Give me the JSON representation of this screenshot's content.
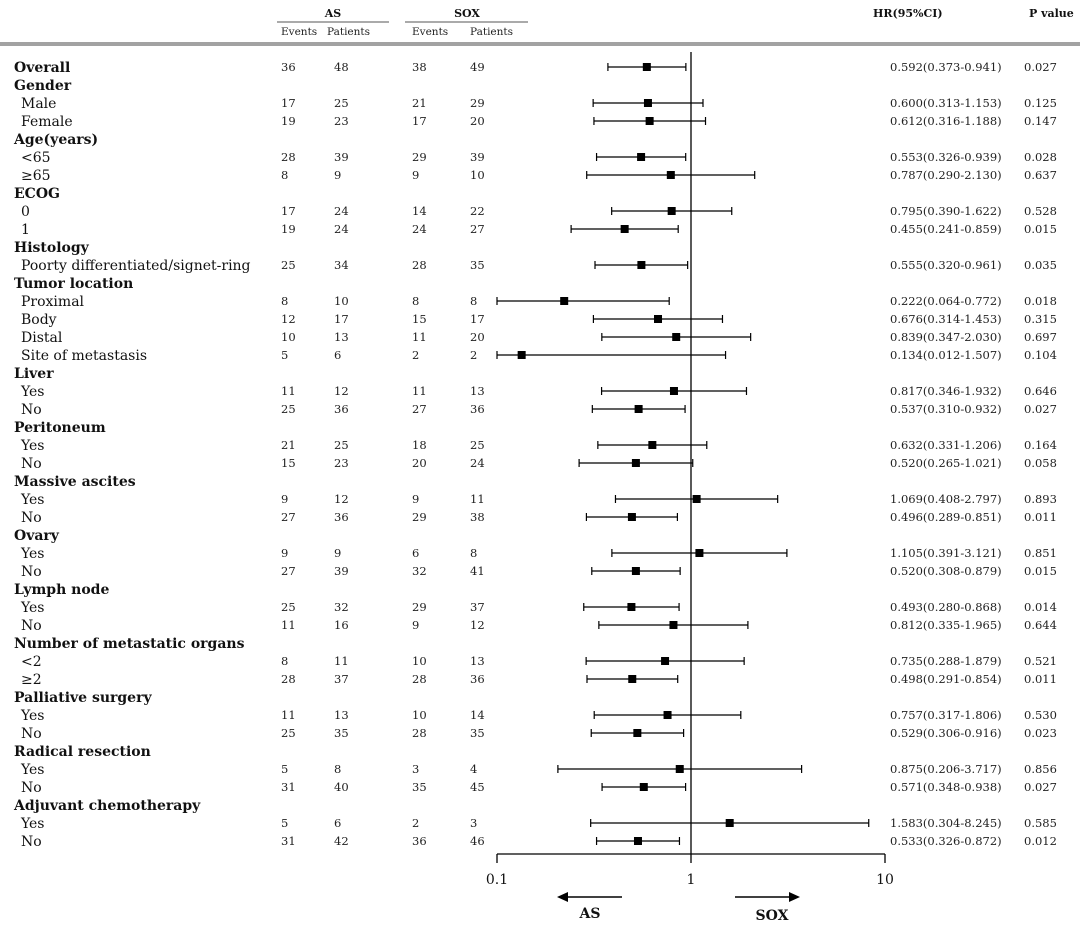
{
  "header": {
    "group_a": "AS",
    "group_b": "SOX",
    "events_label": "Events",
    "patients_label": "Patients",
    "hr_label": "HR(95%CI)",
    "p_label": "P value"
  },
  "chart_data": {
    "type": "forest",
    "x_scale": "log",
    "xlim": [
      0.1,
      10
    ],
    "reference_line": 1,
    "x_ticks": [
      "0.1",
      "1",
      "10"
    ],
    "direction_left": "AS",
    "direction_right": "SOX",
    "colors": {
      "marker": "#000000",
      "line": "#000000"
    },
    "rows": [
      {
        "label": "Overall",
        "type": "header",
        "as_events": "36",
        "as_patients": "48",
        "sox_events": "38",
        "sox_patients": "49",
        "hr": 0.592,
        "lo": 0.373,
        "hi": 0.941,
        "hr_text": "0.592(0.373-0.941)",
        "p": "0.027"
      },
      {
        "label": "Gender",
        "type": "header"
      },
      {
        "label": "Male",
        "type": "item",
        "as_events": "17",
        "as_patients": "25",
        "sox_events": "21",
        "sox_patients": "29",
        "hr": 0.6,
        "lo": 0.313,
        "hi": 1.153,
        "hr_text": "0.600(0.313-1.153)",
        "p": "0.125"
      },
      {
        "label": "Female",
        "type": "item",
        "as_events": "19",
        "as_patients": "23",
        "sox_events": "17",
        "sox_patients": "20",
        "hr": 0.612,
        "lo": 0.316,
        "hi": 1.188,
        "hr_text": "0.612(0.316-1.188)",
        "p": "0.147"
      },
      {
        "label": "Age(years)",
        "type": "header"
      },
      {
        "label": "<65",
        "type": "item",
        "as_events": "28",
        "as_patients": "39",
        "sox_events": "29",
        "sox_patients": "39",
        "hr": 0.553,
        "lo": 0.326,
        "hi": 0.939,
        "hr_text": "0.553(0.326-0.939)",
        "p": "0.028"
      },
      {
        "label": "≥65",
        "type": "item",
        "as_events": "8",
        "as_patients": "9",
        "sox_events": "9",
        "sox_patients": "10",
        "hr": 0.787,
        "lo": 0.29,
        "hi": 2.13,
        "hr_text": "0.787(0.290-2.130)",
        "p": "0.637"
      },
      {
        "label": "ECOG",
        "type": "header"
      },
      {
        "label": "0",
        "type": "item",
        "as_events": "17",
        "as_patients": "24",
        "sox_events": "14",
        "sox_patients": "22",
        "hr": 0.795,
        "lo": 0.39,
        "hi": 1.622,
        "hr_text": "0.795(0.390-1.622)",
        "p": "0.528"
      },
      {
        "label": "1",
        "type": "item",
        "as_events": "19",
        "as_patients": "24",
        "sox_events": "24",
        "sox_patients": "27",
        "hr": 0.455,
        "lo": 0.241,
        "hi": 0.859,
        "hr_text": "0.455(0.241-0.859)",
        "p": "0.015"
      },
      {
        "label": "Histology",
        "type": "header"
      },
      {
        "label": "Poorty differentiated/signet-ring",
        "type": "item",
        "as_events": "25",
        "as_patients": "34",
        "sox_events": "28",
        "sox_patients": "35",
        "hr": 0.555,
        "lo": 0.32,
        "hi": 0.961,
        "hr_text": "0.555(0.320-0.961)",
        "p": "0.035"
      },
      {
        "label": "Tumor location",
        "type": "header"
      },
      {
        "label": "Proximal",
        "type": "item",
        "as_events": "8",
        "as_patients": "10",
        "sox_events": "8",
        "sox_patients": "8",
        "hr": 0.222,
        "lo": 0.064,
        "hi": 0.772,
        "hr_text": "0.222(0.064-0.772)",
        "p": "0.018"
      },
      {
        "label": "Body",
        "type": "item",
        "as_events": "12",
        "as_patients": "17",
        "sox_events": "15",
        "sox_patients": "17",
        "hr": 0.676,
        "lo": 0.314,
        "hi": 1.453,
        "hr_text": "0.676(0.314-1.453)",
        "p": "0.315"
      },
      {
        "label": "Distal",
        "type": "item",
        "as_events": "10",
        "as_patients": "13",
        "sox_events": "11",
        "sox_patients": "20",
        "hr": 0.839,
        "lo": 0.347,
        "hi": 2.03,
        "hr_text": "0.839(0.347-2.030)",
        "p": "0.697"
      },
      {
        "label": "Site of metastasis",
        "type": "item",
        "as_events": "5",
        "as_patients": "6",
        "sox_events": "2",
        "sox_patients": "2",
        "hr": 0.134,
        "lo": 0.012,
        "hi": 1.507,
        "hr_text": "0.134(0.012-1.507)",
        "p": "0.104"
      },
      {
        "label": "Liver",
        "type": "header"
      },
      {
        "label": "Yes",
        "type": "item",
        "as_events": "11",
        "as_patients": "12",
        "sox_events": "11",
        "sox_patients": "13",
        "hr": 0.817,
        "lo": 0.346,
        "hi": 1.932,
        "hr_text": "0.817(0.346-1.932)",
        "p": "0.646"
      },
      {
        "label": "No",
        "type": "item",
        "as_events": "25",
        "as_patients": "36",
        "sox_events": "27",
        "sox_patients": "36",
        "hr": 0.537,
        "lo": 0.31,
        "hi": 0.932,
        "hr_text": "0.537(0.310-0.932)",
        "p": "0.027"
      },
      {
        "label": "Peritoneum",
        "type": "header"
      },
      {
        "label": "Yes",
        "type": "item",
        "as_events": "21",
        "as_patients": "25",
        "sox_events": "18",
        "sox_patients": "25",
        "hr": 0.632,
        "lo": 0.331,
        "hi": 1.206,
        "hr_text": "0.632(0.331-1.206)",
        "p": "0.164"
      },
      {
        "label": "No",
        "type": "item",
        "as_events": "15",
        "as_patients": "23",
        "sox_events": "20",
        "sox_patients": "24",
        "hr": 0.52,
        "lo": 0.265,
        "hi": 1.021,
        "hr_text": "0.520(0.265-1.021)",
        "p": "0.058"
      },
      {
        "label": "Massive ascites",
        "type": "header"
      },
      {
        "label": "Yes",
        "type": "item",
        "as_events": "9",
        "as_patients": "12",
        "sox_events": "9",
        "sox_patients": "11",
        "hr": 1.069,
        "lo": 0.408,
        "hi": 2.797,
        "hr_text": "1.069(0.408-2.797)",
        "p": "0.893"
      },
      {
        "label": "No",
        "type": "item",
        "as_events": "27",
        "as_patients": "36",
        "sox_events": "29",
        "sox_patients": "38",
        "hr": 0.496,
        "lo": 0.289,
        "hi": 0.851,
        "hr_text": "0.496(0.289-0.851)",
        "p": "0.011"
      },
      {
        "label": "Ovary",
        "type": "header"
      },
      {
        "label": "Yes",
        "type": "item",
        "as_events": "9",
        "as_patients": "9",
        "sox_events": "6",
        "sox_patients": "8",
        "hr": 1.105,
        "lo": 0.391,
        "hi": 3.121,
        "hr_text": "1.105(0.391-3.121)",
        "p": "0.851"
      },
      {
        "label": "No",
        "type": "item",
        "as_events": "27",
        "as_patients": "39",
        "sox_events": "32",
        "sox_patients": "41",
        "hr": 0.52,
        "lo": 0.308,
        "hi": 0.879,
        "hr_text": "0.520(0.308-0.879)",
        "p": "0.015"
      },
      {
        "label": "Lymph node",
        "type": "header"
      },
      {
        "label": "Yes",
        "type": "item",
        "as_events": "25",
        "as_patients": "32",
        "sox_events": "29",
        "sox_patients": "37",
        "hr": 0.493,
        "lo": 0.28,
        "hi": 0.868,
        "hr_text": "0.493(0.280-0.868)",
        "p": "0.014"
      },
      {
        "label": "No",
        "type": "item",
        "as_events": "11",
        "as_patients": "16",
        "sox_events": "9",
        "sox_patients": "12",
        "hr": 0.812,
        "lo": 0.335,
        "hi": 1.965,
        "hr_text": "0.812(0.335-1.965)",
        "p": "0.644"
      },
      {
        "label": "Number of metastatic organs",
        "type": "header"
      },
      {
        "label": "<2",
        "type": "item",
        "as_events": "8",
        "as_patients": "11",
        "sox_events": "10",
        "sox_patients": "13",
        "hr": 0.735,
        "lo": 0.288,
        "hi": 1.879,
        "hr_text": "0.735(0.288-1.879)",
        "p": "0.521"
      },
      {
        "label": "≥2",
        "type": "item",
        "as_events": "28",
        "as_patients": "37",
        "sox_events": "28",
        "sox_patients": "36",
        "hr": 0.498,
        "lo": 0.291,
        "hi": 0.854,
        "hr_text": "0.498(0.291-0.854)",
        "p": "0.011"
      },
      {
        "label": "Palliative surgery",
        "type": "header"
      },
      {
        "label": "Yes",
        "type": "item",
        "as_events": "11",
        "as_patients": "13",
        "sox_events": "10",
        "sox_patients": "14",
        "hr": 0.757,
        "lo": 0.317,
        "hi": 1.806,
        "hr_text": "0.757(0.317-1.806)",
        "p": "0.530"
      },
      {
        "label": "No",
        "type": "item",
        "as_events": "25",
        "as_patients": "35",
        "sox_events": "28",
        "sox_patients": "35",
        "hr": 0.529,
        "lo": 0.306,
        "hi": 0.916,
        "hr_text": "0.529(0.306-0.916)",
        "p": "0.023"
      },
      {
        "label": "Radical resection",
        "type": "header"
      },
      {
        "label": "Yes",
        "type": "item",
        "as_events": "5",
        "as_patients": "8",
        "sox_events": "3",
        "sox_patients": "4",
        "hr": 0.875,
        "lo": 0.206,
        "hi": 3.717,
        "hr_text": "0.875(0.206-3.717)",
        "p": "0.856"
      },
      {
        "label": "No",
        "type": "item",
        "as_events": "31",
        "as_patients": "40",
        "sox_events": "35",
        "sox_patients": "45",
        "hr": 0.571,
        "lo": 0.348,
        "hi": 0.938,
        "hr_text": "0.571(0.348-0.938)",
        "p": "0.027"
      },
      {
        "label": "Adjuvant chemotherapy",
        "type": "header"
      },
      {
        "label": "Yes",
        "type": "item",
        "as_events": "5",
        "as_patients": "6",
        "sox_events": "2",
        "sox_patients": "3",
        "hr": 1.583,
        "lo": 0.304,
        "hi": 8.245,
        "hr_text": "1.583(0.304-8.245)",
        "p": "0.585"
      },
      {
        "label": "No",
        "type": "item",
        "as_events": "31",
        "as_patients": "42",
        "sox_events": "36",
        "sox_patients": "46",
        "hr": 0.533,
        "lo": 0.326,
        "hi": 0.872,
        "hr_text": "0.533(0.326-0.872)",
        "p": "0.012"
      }
    ]
  }
}
